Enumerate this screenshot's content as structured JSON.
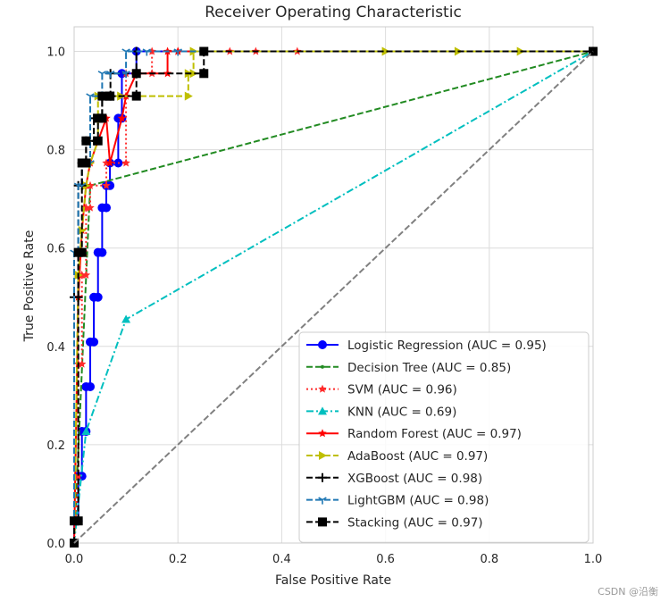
{
  "chart_data": {
    "type": "line",
    "title": "Receiver Operating Characteristic",
    "xlabel": "False Positive Rate",
    "ylabel": "True Positive Rate",
    "xlim": [
      0,
      1
    ],
    "ylim": [
      0,
      1.05
    ],
    "xticks": [
      "0.0",
      "0.2",
      "0.4",
      "0.6",
      "0.8",
      "1.0"
    ],
    "yticks": [
      "0.0",
      "0.2",
      "0.4",
      "0.6",
      "0.8",
      "1.0"
    ],
    "grid": true,
    "legend_position": "lower-right",
    "series": [
      {
        "name": "Logistic Regression (AUC = 0.95)",
        "color": "#0000ff",
        "dash": "solid",
        "marker": "circle",
        "x": [
          0,
          0,
          0.008,
          0.008,
          0.015,
          0.015,
          0.023,
          0.023,
          0.031,
          0.031,
          0.038,
          0.038,
          0.046,
          0.046,
          0.054,
          0.054,
          0.062,
          0.062,
          0.069,
          0.069,
          0.085,
          0.085,
          0.092,
          0.092,
          0.12,
          0.12,
          1
        ],
        "y": [
          0,
          0.045,
          0.045,
          0.136,
          0.136,
          0.227,
          0.227,
          0.318,
          0.318,
          0.409,
          0.409,
          0.5,
          0.5,
          0.591,
          0.591,
          0.682,
          0.682,
          0.727,
          0.727,
          0.773,
          0.773,
          0.864,
          0.864,
          0.955,
          0.955,
          1.0,
          1.0
        ]
      },
      {
        "name": "Decision Tree (AUC = 0.85)",
        "color": "#228b22",
        "dash": "dashed",
        "marker": "dot",
        "x": [
          0,
          0.031,
          1
        ],
        "y": [
          0,
          0.727,
          1.0
        ]
      },
      {
        "name": "SVM (AUC = 0.96)",
        "color": "#ff2a2a",
        "dash": "dotted",
        "marker": "star",
        "x": [
          0,
          0.008,
          0.008,
          0.015,
          0.015,
          0.023,
          0.023,
          0.031,
          0.031,
          0.062,
          0.062,
          0.1,
          0.1,
          0.15,
          0.15,
          0.2,
          0.3,
          0.35,
          0.43,
          1
        ],
        "y": [
          0,
          0.136,
          0.364,
          0.364,
          0.545,
          0.545,
          0.682,
          0.682,
          0.727,
          0.727,
          0.773,
          0.773,
          0.955,
          0.955,
          1.0,
          1.0,
          1.0,
          1.0,
          1.0,
          1.0
        ]
      },
      {
        "name": "KNN (AUC = 0.69)",
        "color": "#00bfbf",
        "dash": "dashdot",
        "marker": "triangle",
        "x": [
          0,
          0.023,
          0.1,
          1
        ],
        "y": [
          0,
          0.227,
          0.455,
          1.0
        ]
      },
      {
        "name": "Random Forest (AUC = 0.97)",
        "color": "#ff0000",
        "dash": "solid",
        "marker": "star",
        "x": [
          0,
          0.008,
          0.015,
          0.023,
          0.031,
          0.046,
          0.062,
          0.069,
          0.092,
          0.1,
          0.12,
          0.18,
          0.18,
          0.2,
          0.25,
          1
        ],
        "y": [
          0,
          0.5,
          0.636,
          0.727,
          0.773,
          0.818,
          0.864,
          0.773,
          0.864,
          0.909,
          0.955,
          0.955,
          1.0,
          1.0,
          1.0,
          1.0
        ]
      },
      {
        "name": "AdaBoost (AUC = 0.97)",
        "color": "#bfbf00",
        "dash": "dashed",
        "marker": "triangle-right",
        "x": [
          0,
          0.008,
          0.015,
          0.023,
          0.031,
          0.046,
          0.046,
          0.09,
          0.09,
          0.22,
          0.22,
          0.23,
          0.23,
          0.6,
          0.74,
          0.86,
          1
        ],
        "y": [
          0,
          0.545,
          0.636,
          0.727,
          0.773,
          0.818,
          0.909,
          0.909,
          0.909,
          0.909,
          0.955,
          0.955,
          1.0,
          1.0,
          1.0,
          1.0,
          1.0
        ]
      },
      {
        "name": "XGBoost (AUC = 0.98)",
        "color": "#000000",
        "dash": "dashed",
        "marker": "plus",
        "x": [
          0,
          0,
          0.008,
          0.008,
          0.015,
          0.015,
          0.023,
          0.023,
          0.038,
          0.038,
          0.054,
          0.054,
          0.07,
          0.07,
          0.12,
          0.12,
          1
        ],
        "y": [
          0,
          0.5,
          0.5,
          0.727,
          0.727,
          0.773,
          0.773,
          0.818,
          0.818,
          0.864,
          0.864,
          0.909,
          0.909,
          0.955,
          0.955,
          1.0,
          1.0
        ]
      },
      {
        "name": "LightGBM (AUC = 0.98)",
        "color": "#1f77b4",
        "dash": "dashed",
        "marker": "tri",
        "x": [
          0,
          0,
          0.008,
          0.008,
          0.015,
          0.015,
          0.031,
          0.031,
          0.054,
          0.054,
          0.07,
          0.07,
          0.1,
          0.1,
          0.14,
          0.2,
          1
        ],
        "y": [
          0,
          0.591,
          0.591,
          0.727,
          0.727,
          0.773,
          0.773,
          0.909,
          0.909,
          0.955,
          0.955,
          0.955,
          0.955,
          1.0,
          1.0,
          1.0,
          1.0
        ]
      },
      {
        "name": "Stacking (AUC = 0.97)",
        "color": "#000000",
        "dash": "dashed",
        "marker": "square",
        "x": [
          0,
          0,
          0.008,
          0.008,
          0.015,
          0.015,
          0.023,
          0.023,
          0.046,
          0.046,
          0.054,
          0.054,
          0.069,
          0.069,
          0.12,
          0.12,
          0.25,
          0.25,
          1
        ],
        "y": [
          0,
          0.045,
          0.045,
          0.591,
          0.591,
          0.773,
          0.773,
          0.818,
          0.818,
          0.864,
          0.864,
          0.909,
          0.909,
          0.909,
          0.909,
          0.955,
          0.955,
          1.0,
          1.0
        ]
      },
      {
        "name": "",
        "color": "#808080",
        "dash": "dashed",
        "marker": "none",
        "legend": false,
        "x": [
          0,
          1
        ],
        "y": [
          0,
          1
        ]
      }
    ]
  },
  "watermark": "CSDN @沿衡"
}
